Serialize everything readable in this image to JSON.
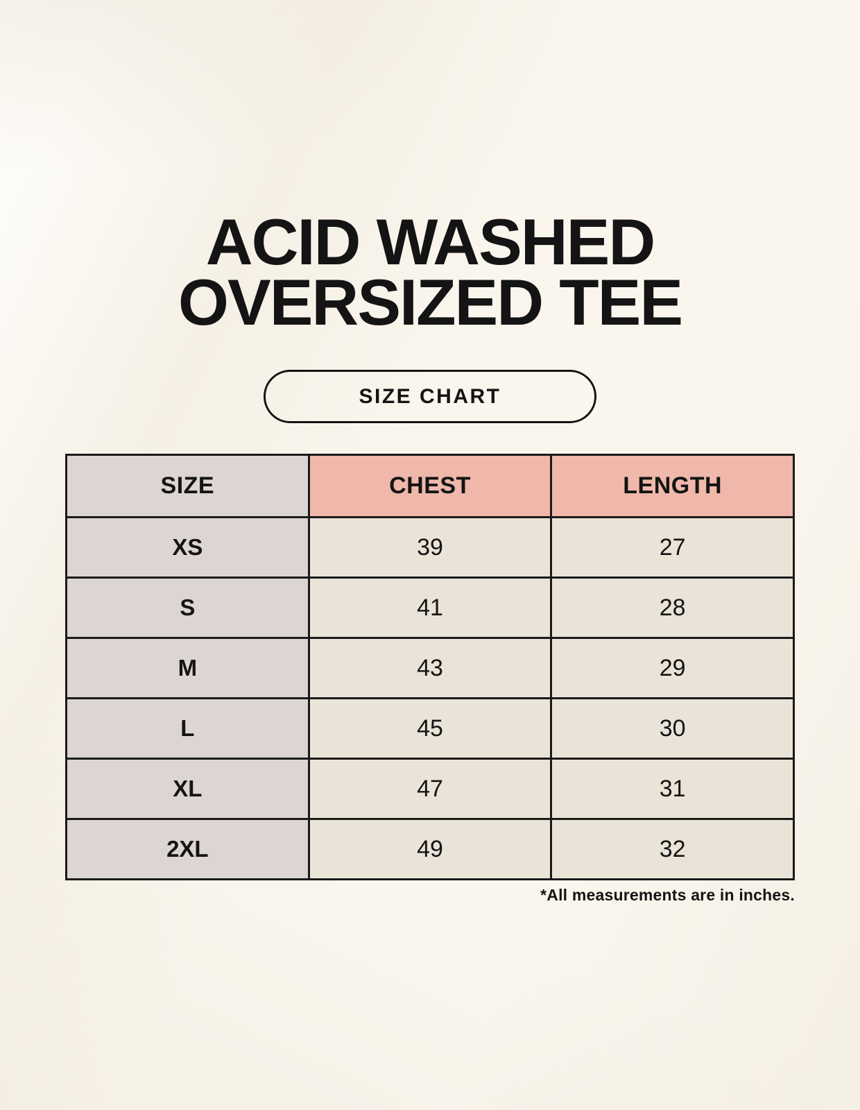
{
  "colors": {
    "page-bg": "#faf6ee",
    "ink": "#141414",
    "table-border": "#1a1a1a",
    "header-pink": "#efb8aa",
    "size-col": "#ddd5d1",
    "cell-beige": "#eae3d7"
  },
  "title": {
    "line1": "ACID WASHED",
    "line2": "OVERSIZED TEE"
  },
  "size_chart_button": {
    "label": "SIZE CHART"
  },
  "chart_data": {
    "type": "table",
    "title": "ACID WASHED OVERSIZED TEE",
    "subtitle": "SIZE CHART",
    "columns": [
      "SIZE",
      "CHEST",
      "LENGTH"
    ],
    "rows": [
      [
        "XS",
        "39",
        "27"
      ],
      [
        "S",
        "41",
        "28"
      ],
      [
        "M",
        "43",
        "29"
      ],
      [
        "L",
        "45",
        "30"
      ],
      [
        "XL",
        "47",
        "31"
      ],
      [
        "2XL",
        "49",
        "32"
      ]
    ],
    "units": "inches",
    "footnote": "*All measurements are in inches."
  }
}
